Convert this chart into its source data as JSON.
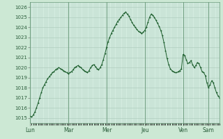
{
  "bg_color": "#cce8d4",
  "plot_bg_color": "#d4ece0",
  "grid_color": "#a8c8b8",
  "line_color": "#1a5c2a",
  "ylim": [
    1014.5,
    1026.5
  ],
  "yticks": [
    1015,
    1016,
    1017,
    1018,
    1019,
    1020,
    1021,
    1022,
    1023,
    1024,
    1025,
    1026
  ],
  "day_labels": [
    "Lun",
    "Mar",
    "Mer",
    "Jeu",
    "Ven",
    "Sam"
  ],
  "day_tick_positions": [
    0.0,
    0.202,
    0.404,
    0.606,
    0.808,
    0.94
  ],
  "pressure_data": [
    1015.2,
    1015.1,
    1015.3,
    1015.6,
    1016.0,
    1016.5,
    1017.0,
    1017.5,
    1018.0,
    1018.3,
    1018.6,
    1018.9,
    1019.1,
    1019.3,
    1019.5,
    1019.6,
    1019.8,
    1019.9,
    1020.0,
    1019.9,
    1019.8,
    1019.7,
    1019.6,
    1019.5,
    1019.4,
    1019.5,
    1019.6,
    1019.8,
    1020.0,
    1020.1,
    1020.2,
    1020.1,
    1020.0,
    1019.8,
    1019.7,
    1019.6,
    1019.5,
    1019.7,
    1020.0,
    1020.2,
    1020.3,
    1020.1,
    1019.9,
    1019.8,
    1020.0,
    1020.3,
    1020.8,
    1021.4,
    1022.0,
    1022.6,
    1023.0,
    1023.4,
    1023.7,
    1024.0,
    1024.3,
    1024.6,
    1024.8,
    1025.0,
    1025.2,
    1025.4,
    1025.5,
    1025.3,
    1025.1,
    1024.8,
    1024.5,
    1024.2,
    1024.0,
    1023.8,
    1023.6,
    1023.5,
    1023.4,
    1023.5,
    1023.7,
    1024.0,
    1024.5,
    1025.0,
    1025.3,
    1025.2,
    1025.0,
    1024.7,
    1024.4,
    1024.1,
    1023.7,
    1023.2,
    1022.5,
    1021.7,
    1020.9,
    1020.3,
    1019.9,
    1019.7,
    1019.6,
    1019.5,
    1019.5,
    1019.6,
    1019.7,
    1019.9,
    1021.3,
    1021.2,
    1020.8,
    1020.4,
    1020.5,
    1020.7,
    1020.3,
    1020.0,
    1020.2,
    1020.5,
    1020.4,
    1020.0,
    1019.6,
    1019.5,
    1019.2,
    1018.5,
    1018.0,
    1018.3,
    1018.7,
    1018.5,
    1018.0,
    1017.5,
    1017.2,
    1017.0
  ]
}
